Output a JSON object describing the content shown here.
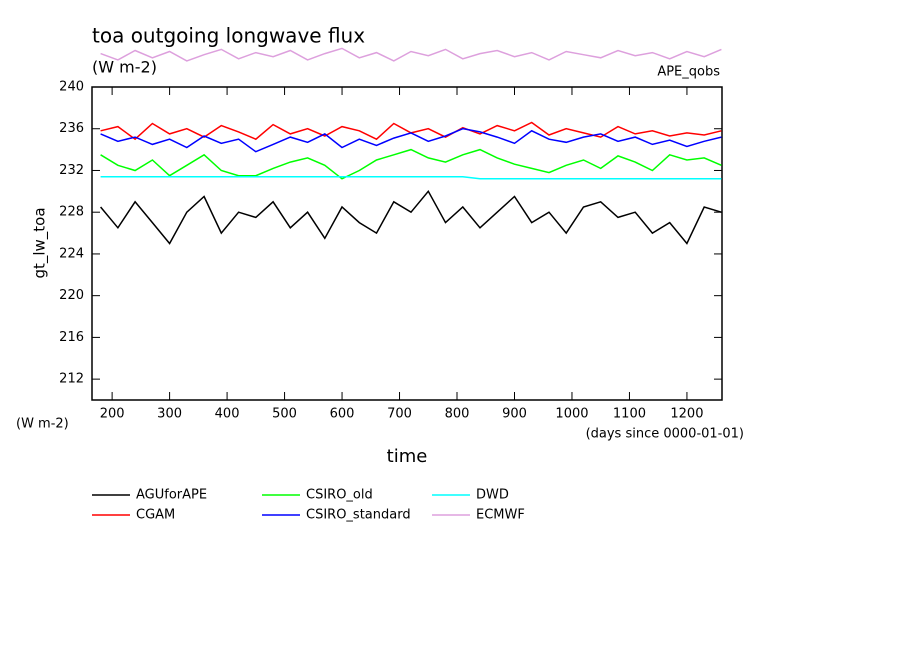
{
  "chart_data": {
    "type": "line",
    "title": "toa outgoing longwave flux",
    "subtitle": "(W m-2)",
    "annotation": "APE_qobs",
    "y_label": "gt_lw_toa",
    "y_unit_label": "(W m-2)",
    "x_label": "time",
    "x_unit_label": "(days since 0000-01-01)",
    "x": [
      180,
      210,
      240,
      270,
      300,
      330,
      360,
      390,
      420,
      450,
      480,
      510,
      540,
      570,
      600,
      630,
      660,
      690,
      720,
      750,
      780,
      810,
      840,
      870,
      900,
      930,
      960,
      990,
      1020,
      1050,
      1080,
      1110,
      1140,
      1170,
      1200,
      1230,
      1260
    ],
    "series": [
      {
        "name": "AGUforAPE",
        "color": "#000000",
        "values": [
          228.5,
          226.5,
          229,
          227,
          225,
          228,
          229.5,
          226,
          228,
          227.5,
          229,
          226.5,
          228,
          225.5,
          228.5,
          227,
          226,
          229,
          228,
          230,
          227,
          228.5,
          226.5,
          228,
          229.5,
          227,
          228,
          226,
          228.5,
          229,
          227.5,
          228,
          226,
          227,
          225,
          228.5,
          228
        ]
      },
      {
        "name": "CGAM",
        "color": "#ff0000",
        "values": [
          235.8,
          236.2,
          235,
          236.5,
          235.5,
          236,
          235.2,
          236.3,
          235.7,
          235,
          236.4,
          235.5,
          236,
          235.3,
          236.2,
          235.8,
          235,
          236.5,
          235.6,
          236,
          235.2,
          236.1,
          235.5,
          236.3,
          235.8,
          236.6,
          235.4,
          236,
          235.6,
          235.2,
          236.2,
          235.5,
          235.8,
          235.3,
          235.6,
          235.4,
          235.8
        ]
      },
      {
        "name": "CSIRO_old",
        "color": "#00ff00",
        "values": [
          233.5,
          232.5,
          232,
          233,
          231.5,
          232.5,
          233.5,
          232,
          231.5,
          231.5,
          232.2,
          232.8,
          233.2,
          232.5,
          231.2,
          232,
          233,
          233.5,
          234,
          233.2,
          232.8,
          233.5,
          234,
          233.2,
          232.6,
          232.2,
          231.8,
          232.5,
          233,
          232.2,
          233.4,
          232.8,
          232,
          233.5,
          233,
          233.2,
          232.5
        ]
      },
      {
        "name": "CSIRO_standard",
        "color": "#0000ff",
        "values": [
          235.5,
          234.8,
          235.2,
          234.5,
          235,
          234.2,
          235.3,
          234.6,
          235,
          233.8,
          234.5,
          235.2,
          234.7,
          235.5,
          234.2,
          235,
          234.4,
          235.1,
          235.6,
          234.8,
          235.3,
          236,
          235.7,
          235.2,
          234.6,
          235.8,
          235,
          234.7,
          235.2,
          235.5,
          234.8,
          235.2,
          234.5,
          234.9,
          234.3,
          234.8,
          235.2
        ]
      },
      {
        "name": "DWD",
        "color": "#00ffff",
        "values": [
          231.4,
          231.4,
          231.4,
          231.4,
          231.4,
          231.4,
          231.4,
          231.4,
          231.4,
          231.4,
          231.4,
          231.4,
          231.4,
          231.4,
          231.4,
          231.4,
          231.4,
          231.4,
          231.4,
          231.4,
          231.4,
          231.4,
          231.2,
          231.2,
          231.2,
          231.2,
          231.2,
          231.2,
          231.2,
          231.2,
          231.2,
          231.2,
          231.2,
          231.2,
          231.2,
          231.2,
          231.2
        ]
      },
      {
        "name": "ECMWF",
        "color": "#dda0dd",
        "values": [
          243.2,
          242.6,
          243.5,
          242.8,
          243.4,
          242.5,
          243.1,
          243.6,
          242.7,
          243.3,
          242.9,
          243.5,
          242.6,
          243.2,
          243.7,
          242.8,
          243.3,
          242.5,
          243.4,
          243,
          243.6,
          242.7,
          243.2,
          243.5,
          242.9,
          243.3,
          242.6,
          243.4,
          243.1,
          242.8,
          243.5,
          243,
          243.3,
          242.7,
          243.4,
          242.9,
          243.6
        ]
      }
    ],
    "xlim": [
      165,
      1261
    ],
    "ylim": [
      210,
      240
    ],
    "xticks": [
      200,
      300,
      400,
      500,
      600,
      700,
      800,
      900,
      1000,
      1100,
      1200
    ],
    "yticks": [
      212,
      216,
      220,
      224,
      228,
      232,
      236,
      240
    ]
  }
}
